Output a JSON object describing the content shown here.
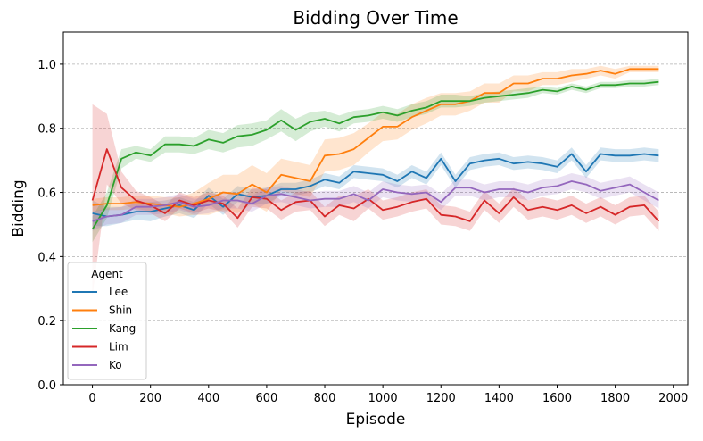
{
  "chart_data": {
    "type": "line",
    "title": "Bidding Over Time",
    "xlabel": "Episode",
    "ylabel": "Bidding",
    "xlim": [
      -100,
      2050
    ],
    "ylim": [
      0.0,
      1.1
    ],
    "xticks": [
      "0",
      "200",
      "400",
      "600",
      "800",
      "1000",
      "1200",
      "1400",
      "1600",
      "1800",
      "2000"
    ],
    "xtick_values": [
      0,
      200,
      400,
      600,
      800,
      1000,
      1200,
      1400,
      1600,
      1800,
      2000
    ],
    "yticks": [
      "0.0",
      "0.2",
      "0.4",
      "0.6",
      "0.8",
      "1.0"
    ],
    "ytick_values": [
      0.0,
      0.2,
      0.4,
      0.6,
      0.8,
      1.0
    ],
    "grid": "horizontal dashed",
    "legend": {
      "title": "Agent",
      "position": "lower-left"
    },
    "x": [
      0,
      50,
      100,
      150,
      200,
      250,
      300,
      350,
      400,
      450,
      500,
      550,
      600,
      650,
      700,
      750,
      800,
      850,
      900,
      950,
      1000,
      1050,
      1100,
      1150,
      1200,
      1250,
      1300,
      1350,
      1400,
      1450,
      1500,
      1550,
      1600,
      1650,
      1700,
      1750,
      1800,
      1850,
      1900,
      1950
    ],
    "series": [
      {
        "name": "Lee",
        "color": "#1f77b4",
        "values": [
          0.535,
          0.525,
          0.53,
          0.54,
          0.54,
          0.55,
          0.56,
          0.545,
          0.59,
          0.555,
          0.595,
          0.585,
          0.59,
          0.61,
          0.61,
          0.62,
          0.64,
          0.63,
          0.665,
          0.66,
          0.655,
          0.635,
          0.665,
          0.645,
          0.705,
          0.635,
          0.69,
          0.7,
          0.705,
          0.69,
          0.695,
          0.69,
          0.68,
          0.72,
          0.665,
          0.72,
          0.715,
          0.715,
          0.72,
          0.715
        ],
        "band": [
          0.04,
          0.03,
          0.025,
          0.025,
          0.03,
          0.025,
          0.025,
          0.025,
          0.025,
          0.025,
          0.025,
          0.025,
          0.025,
          0.02,
          0.02,
          0.02,
          0.02,
          0.02,
          0.02,
          0.02,
          0.02,
          0.02,
          0.02,
          0.02,
          0.02,
          0.02,
          0.02,
          0.02,
          0.02,
          0.02,
          0.02,
          0.02,
          0.02,
          0.02,
          0.02,
          0.02,
          0.02,
          0.02,
          0.02,
          0.02
        ]
      },
      {
        "name": "Shin",
        "color": "#ff7f0e",
        "values": [
          0.56,
          0.565,
          0.565,
          0.57,
          0.565,
          0.56,
          0.555,
          0.565,
          0.58,
          0.6,
          0.595,
          0.625,
          0.6,
          0.655,
          0.645,
          0.635,
          0.715,
          0.72,
          0.735,
          0.77,
          0.805,
          0.805,
          0.835,
          0.855,
          0.875,
          0.875,
          0.885,
          0.91,
          0.91,
          0.94,
          0.94,
          0.955,
          0.955,
          0.965,
          0.97,
          0.98,
          0.97,
          0.985,
          0.985,
          0.985
        ],
        "band": [
          0.02,
          0.02,
          0.02,
          0.02,
          0.025,
          0.025,
          0.03,
          0.035,
          0.05,
          0.055,
          0.06,
          0.06,
          0.06,
          0.05,
          0.05,
          0.05,
          0.05,
          0.05,
          0.05,
          0.045,
          0.045,
          0.04,
          0.04,
          0.04,
          0.035,
          0.035,
          0.03,
          0.03,
          0.03,
          0.025,
          0.025,
          0.02,
          0.02,
          0.02,
          0.015,
          0.015,
          0.015,
          0.01,
          0.01,
          0.01
        ]
      },
      {
        "name": "Kang",
        "color": "#2ca02c",
        "values": [
          0.485,
          0.56,
          0.705,
          0.725,
          0.715,
          0.75,
          0.75,
          0.745,
          0.765,
          0.755,
          0.775,
          0.78,
          0.795,
          0.825,
          0.795,
          0.82,
          0.83,
          0.815,
          0.835,
          0.84,
          0.85,
          0.84,
          0.855,
          0.865,
          0.885,
          0.885,
          0.885,
          0.895,
          0.9,
          0.905,
          0.91,
          0.92,
          0.915,
          0.93,
          0.92,
          0.935,
          0.935,
          0.94,
          0.94,
          0.945
        ],
        "band": [
          0.04,
          0.04,
          0.03,
          0.02,
          0.02,
          0.025,
          0.025,
          0.025,
          0.03,
          0.03,
          0.035,
          0.035,
          0.03,
          0.035,
          0.035,
          0.03,
          0.025,
          0.025,
          0.02,
          0.02,
          0.02,
          0.02,
          0.02,
          0.02,
          0.02,
          0.02,
          0.015,
          0.015,
          0.015,
          0.015,
          0.015,
          0.01,
          0.01,
          0.01,
          0.01,
          0.01,
          0.01,
          0.01,
          0.01,
          0.01
        ]
      },
      {
        "name": "Lim",
        "color": "#d62728",
        "values": [
          0.575,
          0.735,
          0.615,
          0.575,
          0.56,
          0.535,
          0.575,
          0.56,
          0.575,
          0.565,
          0.52,
          0.585,
          0.58,
          0.545,
          0.57,
          0.575,
          0.525,
          0.56,
          0.55,
          0.58,
          0.545,
          0.555,
          0.57,
          0.58,
          0.53,
          0.525,
          0.51,
          0.575,
          0.535,
          0.585,
          0.545,
          0.555,
          0.545,
          0.56,
          0.535,
          0.555,
          0.53,
          0.555,
          0.56,
          0.51
        ],
        "band": [
          0.3,
          0.11,
          0.05,
          0.03,
          0.025,
          0.025,
          0.025,
          0.025,
          0.025,
          0.025,
          0.03,
          0.03,
          0.03,
          0.03,
          0.03,
          0.03,
          0.03,
          0.03,
          0.04,
          0.03,
          0.03,
          0.03,
          0.03,
          0.03,
          0.03,
          0.03,
          0.03,
          0.03,
          0.03,
          0.03,
          0.03,
          0.03,
          0.03,
          0.03,
          0.03,
          0.03,
          0.03,
          0.03,
          0.03,
          0.03
        ]
      },
      {
        "name": "Ko",
        "color": "#9467bd",
        "values": [
          0.51,
          0.525,
          0.53,
          0.555,
          0.555,
          0.56,
          0.57,
          0.555,
          0.56,
          0.575,
          0.575,
          0.565,
          0.59,
          0.595,
          0.585,
          0.575,
          0.58,
          0.58,
          0.595,
          0.575,
          0.61,
          0.6,
          0.595,
          0.6,
          0.57,
          0.615,
          0.615,
          0.6,
          0.61,
          0.61,
          0.6,
          0.615,
          0.62,
          0.635,
          0.625,
          0.605,
          0.615,
          0.625,
          0.6,
          0.575
        ],
        "band": [
          0.03,
          0.025,
          0.025,
          0.025,
          0.025,
          0.025,
          0.025,
          0.025,
          0.025,
          0.025,
          0.025,
          0.025,
          0.025,
          0.025,
          0.025,
          0.025,
          0.025,
          0.025,
          0.025,
          0.025,
          0.025,
          0.025,
          0.025,
          0.025,
          0.025,
          0.025,
          0.025,
          0.025,
          0.025,
          0.025,
          0.025,
          0.025,
          0.025,
          0.025,
          0.025,
          0.025,
          0.025,
          0.025,
          0.025,
          0.025
        ]
      }
    ]
  }
}
